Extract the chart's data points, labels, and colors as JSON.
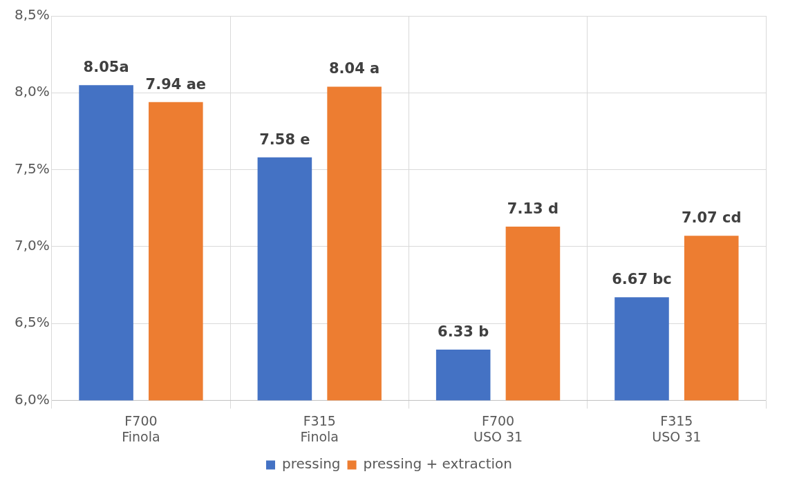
{
  "chart_data": {
    "type": "bar",
    "categories": [
      "F700\nFinola",
      "F315\nFinola",
      "F700\nUSO 31",
      "F315\nUSO 31"
    ],
    "series": [
      {
        "name": "pressing",
        "color": "#4472c4",
        "values": [
          8.05,
          7.58,
          6.33,
          6.67
        ],
        "value_labels": [
          "8.05a",
          "7.58 e",
          "6.33 b",
          "6.67 bc"
        ]
      },
      {
        "name": "pressing + extraction",
        "color": "#ed7d31",
        "values": [
          7.94,
          8.04,
          7.13,
          7.07
        ],
        "value_labels": [
          "7.94 ae",
          "8.04 a",
          "7.13 d",
          "7.07 cd"
        ]
      }
    ],
    "ylim": [
      6,
      8.5
    ],
    "yticks": [
      {
        "value": 6,
        "label": "6,0%"
      },
      {
        "value": 6.5,
        "label": "6,5%"
      },
      {
        "value": 7,
        "label": "7,0%"
      },
      {
        "value": 7.5,
        "label": "7,5%"
      },
      {
        "value": 8,
        "label": "8,0%"
      },
      {
        "value": 8.5,
        "label": "8,5%"
      }
    ],
    "grid": "y",
    "legend": "bottom"
  }
}
